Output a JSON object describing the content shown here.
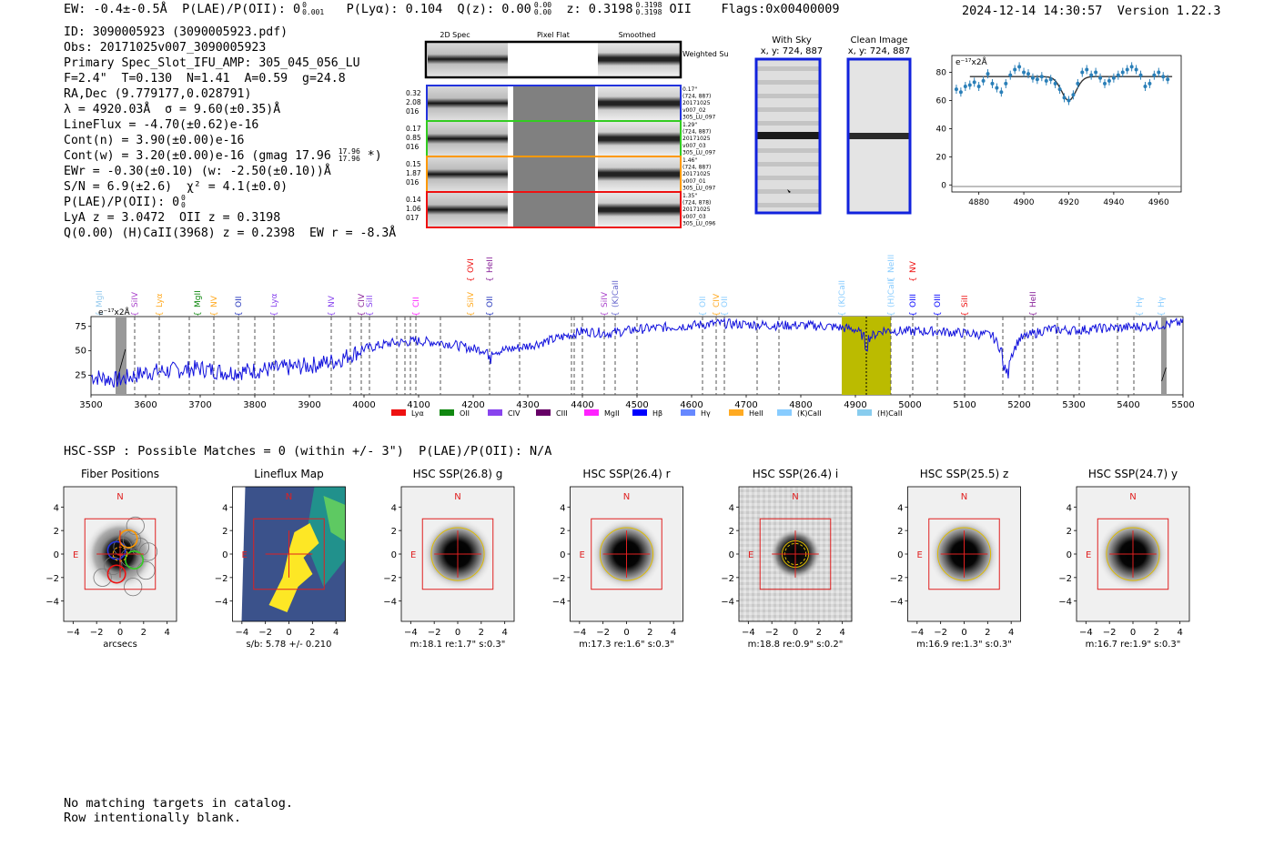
{
  "header": {
    "ew": "EW: -0.4±-0.5Å",
    "plae_label": "P(LAE)/P(OII): 0",
    "plae_sup": "0",
    "plae_sub": "0.001",
    "plya": "P(Lyα): 0.104",
    "qz_label": "Q(z): 0.00",
    "qz_sup": "0.00",
    "qz_sub": "0.00",
    "z_label": "z: 0.3198",
    "z_sup": "0.3198",
    "z_sub": "0.3198",
    "z_line": "OII",
    "flags": "Flags:0x00400009",
    "timestamp": "2024-12-14 14:30:57",
    "version": "Version 1.22.3"
  },
  "info": {
    "id": "ID: 3090005923 (3090005923.pdf)",
    "obs": "Obs: 20171025v007_3090005923",
    "primary": "Primary Spec_Slot_IFU_AMP: 305_045_056_LU",
    "fwhm": "F=2.4\"  T=0.130  N=1.41  A=0.59  g=24.8",
    "radec": "RA,Dec (9.779177,0.028791)",
    "lambda": "λ = 4920.03Å  σ = 9.60(±0.35)Å",
    "lineflux": "LineFlux = -4.70(±0.62)e-16",
    "contn": "Cont(n) = 3.90(±0.00)e-16",
    "contw": "Cont(w) = 3.20(±0.00)e-16 (gmag 17.96",
    "contw_sup": "17.96",
    "contw_sub": "17.96",
    "contw_end": "*)",
    "ewr": "EWr = -0.30(±0.10) (w: -2.50(±0.10))Å",
    "sn": "S/N = 6.9(±2.6)  χ² = 4.1(±0.0)",
    "plae2": "P(LAE)/P(OII): 0",
    "plae2_sup": "0",
    "plae2_sub": "0",
    "lya": "LyA z = 3.0472  OII z = 0.3198",
    "q": "Q(0.00) (H)CaII(3968) z = 0.2398  EW r = -8.3Å"
  },
  "cutouts": {
    "col_2d": "2D Spec",
    "col_flat": "Pixel Flat",
    "col_smooth": "Smoothed",
    "weighted": "Weighted Sum",
    "rows": [
      {
        "left": [
          "0.32",
          "2.08",
          "016"
        ],
        "right": [
          "0.17\"",
          "(724, 887)",
          "20171025",
          "v007_02",
          "305_LU_097"
        ],
        "color": "#2233dd"
      },
      {
        "left": [
          "0.17",
          "0.85",
          "016"
        ],
        "right": [
          "1.29\"",
          "(724, 887)",
          "20171025",
          "v007_03",
          "305_LU_097"
        ],
        "color": "#33cc22"
      },
      {
        "left": [
          "0.15",
          "1.87",
          "016"
        ],
        "right": [
          "1.46\"",
          "(724, 887)",
          "20171025",
          "v007_01",
          "305_LU_097"
        ],
        "color": "#ff9900"
      },
      {
        "left": [
          "0.14",
          "1.06",
          "017"
        ],
        "right": [
          "1.35\"",
          "(724, 878)",
          "20171025",
          "v007_03",
          "305_LU_096"
        ],
        "color": "#ee1111"
      }
    ]
  },
  "sky_panels": {
    "with_sky_title": "With Sky",
    "with_sky_sub": "x, y: 724, 887",
    "clean_title": "Clean Image",
    "clean_sub": "x, y: 724, 887"
  },
  "zoom_plot": {
    "unit": "e⁻¹⁷x2Å",
    "yticks": [
      "80",
      "60",
      "40",
      "20",
      "0"
    ],
    "xticks": [
      "4880",
      "4900",
      "4920",
      "4940",
      "4960"
    ]
  },
  "chart_data": {
    "type": "line",
    "title": "",
    "unit_label": "e⁻¹⁷x2Å",
    "xlim": [
      3500,
      5500
    ],
    "ylim": [
      5,
      85
    ],
    "xticks": [
      3500,
      3600,
      3700,
      3800,
      3900,
      4000,
      4100,
      4200,
      4300,
      4400,
      4500,
      4600,
      4700,
      4800,
      4900,
      5000,
      5100,
      5200,
      5300,
      5400,
      5500
    ],
    "yticks": [
      25,
      50,
      75
    ],
    "highlight_range": [
      4875,
      4965
    ],
    "center_line": 4920,
    "x": [
      3500,
      3550,
      3600,
      3650,
      3700,
      3750,
      3800,
      3850,
      3900,
      3950,
      4000,
      4050,
      4100,
      4150,
      4200,
      4250,
      4300,
      4350,
      4400,
      4450,
      4500,
      4550,
      4600,
      4650,
      4700,
      4750,
      4800,
      4850,
      4900,
      4920,
      4950,
      5000,
      5050,
      5100,
      5150,
      5180,
      5200,
      5250,
      5300,
      5350,
      5400,
      5450,
      5500
    ],
    "y": [
      24,
      20,
      28,
      30,
      32,
      28,
      30,
      32,
      35,
      40,
      52,
      58,
      60,
      58,
      52,
      50,
      55,
      62,
      70,
      68,
      72,
      74,
      76,
      78,
      77,
      76,
      76,
      75,
      72,
      62,
      71,
      70,
      70,
      68,
      66,
      40,
      62,
      72,
      71,
      73,
      74,
      76,
      79
    ],
    "legend": [
      "Lyα",
      "OII",
      "CIV",
      "CIII",
      "MgII",
      "Hβ",
      "Hγ",
      "HeII",
      "(K)CaII",
      "(H)CaII"
    ],
    "legend_colors": [
      "#ee1111",
      "#118811",
      "#8844ee",
      "#660066",
      "#ff22ff",
      "#0000ff",
      "#6688ff",
      "#ffaa22",
      "#88ccff",
      "#88ccee"
    ],
    "line_labels": [
      {
        "label": "MgII",
        "x": 3515,
        "color": "#99ccee"
      },
      {
        "label": "SiIV",
        "x": 3580,
        "color": "#aa44cc"
      },
      {
        "label": "Lyα",
        "x": 3625,
        "color": "#ffaa22"
      },
      {
        "label": "MgII",
        "x": 3695,
        "color": "#118811"
      },
      {
        "label": "NV",
        "x": 3725,
        "color": "#ffaa22"
      },
      {
        "label": "OII",
        "x": 3770,
        "color": "#2233bb"
      },
      {
        "label": "Lyα",
        "x": 3835,
        "color": "#8844ee"
      },
      {
        "label": "NV",
        "x": 3940,
        "color": "#8844ee"
      },
      {
        "label": "CIV",
        "x": 3995,
        "color": "#882299"
      },
      {
        "label": "SiII",
        "x": 4010,
        "color": "#8844ee"
      },
      {
        "label": "CII",
        "x": 4095,
        "color": "#ff22ff"
      },
      {
        "label": "SiIV",
        "x": 4195,
        "color": "#ffaa22"
      },
      {
        "label": "OVI",
        "x": 4195,
        "color": "#ee1111"
      },
      {
        "label": "OII",
        "x": 4230,
        "color": "#2233bb"
      },
      {
        "label": "HeII",
        "x": 4230,
        "color": "#882299"
      },
      {
        "label": "SiIV",
        "x": 4440,
        "color": "#aa44cc"
      },
      {
        "label": "(K)CaII",
        "x": 4460,
        "color": "#6666cc"
      },
      {
        "label": "OII",
        "x": 4620,
        "color": "#88ccff"
      },
      {
        "label": "CIV",
        "x": 4645,
        "color": "#ffaa22"
      },
      {
        "label": "OII",
        "x": 4660,
        "color": "#88ccff"
      },
      {
        "label": "(K)CaII",
        "x": 4875,
        "color": "#88ccff"
      },
      {
        "label": "(H)CaII",
        "x": 4965,
        "color": "#88ccff"
      },
      {
        "label": "NeIII",
        "x": 4965,
        "color": "#88ccff"
      },
      {
        "label": "OIII",
        "x": 5005,
        "color": "#0000ff"
      },
      {
        "label": "NV",
        "x": 5005,
        "color": "#ee1111"
      },
      {
        "label": "OIII",
        "x": 5050,
        "color": "#0000ff"
      },
      {
        "label": "SiII",
        "x": 5100,
        "color": "#ee1111"
      },
      {
        "label": "HeII",
        "x": 5225,
        "color": "#882299"
      },
      {
        "label": "Hγ",
        "x": 5420,
        "color": "#88ccff"
      },
      {
        "label": "Hγ",
        "x": 5460,
        "color": "#88ccff"
      }
    ]
  },
  "hsc": {
    "title": "HSC-SSP : Possible Matches = 0 (within +/- 3\")  P(LAE)/P(OII): N/A",
    "panels": [
      {
        "title": "Fiber Positions",
        "caption": "arcsecs",
        "kind": "fiber"
      },
      {
        "title": "Lineflux Map",
        "caption": "s/b: 5.78 +/- 0.210",
        "kind": "lineflux"
      },
      {
        "title": "HSC SSP(26.8) g",
        "caption": "m:18.1  re:1.7\"  s:0.3\"",
        "kind": "hsc"
      },
      {
        "title": "HSC SSP(26.4) r",
        "caption": "m:17.3  re:1.6\"  s:0.3\"",
        "kind": "hsc"
      },
      {
        "title": "HSC SSP(26.4) i",
        "caption": "m:18.8  re:0.9\"  s:0.2\"",
        "kind": "noisy"
      },
      {
        "title": "HSC SSP(25.5) z",
        "caption": "m:16.9  re:1.3\"  s:0.3\"",
        "kind": "hsc"
      },
      {
        "title": "HSC SSP(24.7) y",
        "caption": "m:16.7  re:1.9\"  s:0.3\"",
        "kind": "hsc"
      }
    ],
    "yticks": [
      "4",
      "2",
      "0",
      "−2",
      "−4"
    ],
    "xticks": [
      "−4",
      "−2",
      "0",
      "2",
      "4"
    ],
    "compass_n": "N",
    "compass_e": "E"
  },
  "catalog": {
    "line1": "No matching targets in catalog.",
    "line2": "Row intentionally blank."
  }
}
